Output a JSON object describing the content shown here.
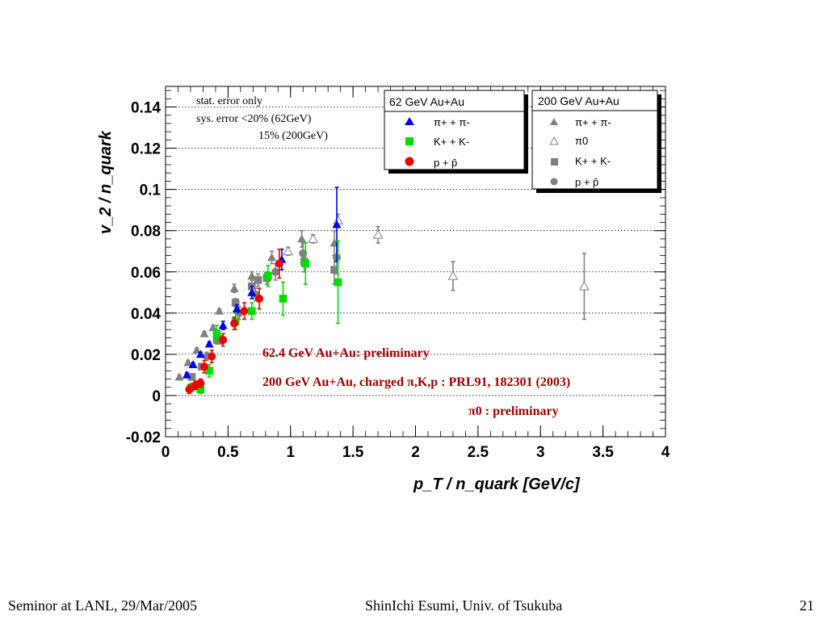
{
  "footer": {
    "left": "Seminor at LANL, 29/Mar/2005",
    "center": "ShinIchi Esumi, Univ. of Tsukuba",
    "right": "21"
  },
  "chart_data": {
    "type": "scatter",
    "title": "",
    "xlabel": "p_T / n_quark [GeV/c]",
    "ylabel": "v_2 / n_quark",
    "xlim": [
      0,
      4
    ],
    "ylim": [
      -0.02,
      0.15
    ],
    "x_ticks": [
      "0",
      "0.5",
      "1",
      "1.5",
      "2",
      "2.5",
      "3",
      "3.5",
      "4"
    ],
    "y_ticks": [
      "-0.02",
      "0",
      "0.02",
      "0.04",
      "0.06",
      "0.08",
      "0.1",
      "0.12",
      "0.14"
    ],
    "grid": "horizontal dotted",
    "notes": [
      "stat. error only",
      "sys. error <20% (62GeV)",
      "15% (200GeV)"
    ],
    "annotations": [
      "62.4 GeV Au+Au: preliminary",
      "200 GeV Au+Au, charged π,K,p : PRL91, 182301 (2003)",
      "π0 : preliminary"
    ],
    "legends": [
      {
        "title": "62 GeV Au+Au",
        "placement": "top-center",
        "entries": [
          "π+ + π-",
          "K+ + K-",
          "p + p̄"
        ]
      },
      {
        "title": "200 GeV Au+Au",
        "placement": "top-right",
        "entries": [
          "π+ + π-",
          "π0",
          "K+ + K-",
          "p + p̄"
        ]
      }
    ],
    "series": [
      {
        "name": "62 GeV π+ + π-",
        "marker": "triangle",
        "fill": true,
        "color": "#0000ee",
        "x": [
          0.17,
          0.22,
          0.28,
          0.35,
          0.46,
          0.57,
          0.69,
          0.93,
          1.37
        ],
        "y": [
          0.01,
          0.015,
          0.02,
          0.025,
          0.034,
          0.042,
          0.05,
          0.066,
          0.083
        ],
        "err": [
          0.001,
          0.001,
          0.001,
          0.001,
          0.002,
          0.002,
          0.003,
          0.005,
          0.018
        ]
      },
      {
        "name": "62 GeV K+ + K-",
        "marker": "square",
        "fill": true,
        "color": "#00dd00",
        "x": [
          0.21,
          0.28,
          0.35,
          0.41,
          0.56,
          0.69,
          0.82,
          0.94,
          1.12,
          1.38
        ],
        "y": [
          0.004,
          0.003,
          0.012,
          0.03,
          0.036,
          0.041,
          0.058,
          0.047,
          0.064,
          0.055
        ],
        "err": [
          0.002,
          0.002,
          0.003,
          0.004,
          0.004,
          0.004,
          0.005,
          0.008,
          0.01,
          0.02
        ]
      },
      {
        "name": "62 GeV p + p̄",
        "marker": "circle",
        "fill": true,
        "color": "#ee0000",
        "x": [
          0.19,
          0.24,
          0.28,
          0.31,
          0.37,
          0.46,
          0.55,
          0.63,
          0.75,
          0.91
        ],
        "y": [
          0.003,
          0.005,
          0.006,
          0.014,
          0.019,
          0.027,
          0.035,
          0.041,
          0.047,
          0.064
        ],
        "err": [
          0.002,
          0.002,
          0.002,
          0.003,
          0.003,
          0.003,
          0.003,
          0.004,
          0.005,
          0.007
        ]
      },
      {
        "name": "200 GeV π+ + π-",
        "marker": "triangle",
        "fill": true,
        "color": "#808080",
        "x": [
          0.11,
          0.18,
          0.25,
          0.31,
          0.38,
          0.43,
          0.55,
          0.69,
          0.85,
          1.09,
          1.35
        ],
        "y": [
          0.009,
          0.016,
          0.022,
          0.03,
          0.033,
          0.041,
          0.052,
          0.058,
          0.067,
          0.076,
          0.074
        ],
        "err": [
          0.001,
          0.001,
          0.001,
          0.001,
          0.001,
          0.001,
          0.002,
          0.002,
          0.003,
          0.004,
          0.006
        ]
      },
      {
        "name": "200 GeV π0",
        "marker": "triangle",
        "fill": false,
        "color": "#808080",
        "x": [
          0.98,
          1.18,
          1.38,
          1.7,
          2.3,
          3.35
        ],
        "y": [
          0.07,
          0.076,
          0.085,
          0.078,
          0.058,
          0.053
        ],
        "err": [
          0.002,
          0.002,
          0.003,
          0.004,
          0.007,
          0.016
        ]
      },
      {
        "name": "200 GeV K+ + K-",
        "marker": "square",
        "fill": true,
        "color": "#808080",
        "x": [
          0.21,
          0.29,
          0.41,
          0.56,
          0.69,
          0.74,
          0.81,
          1.11,
          1.35
        ],
        "y": [
          0.009,
          0.014,
          0.027,
          0.045,
          0.053,
          0.056,
          0.057,
          0.065,
          0.061
        ],
        "err": [
          0.001,
          0.001,
          0.002,
          0.002,
          0.003,
          0.003,
          0.003,
          0.005,
          0.007
        ]
      },
      {
        "name": "200 GeV p + p̄",
        "marker": "circle",
        "fill": true,
        "color": "#808080",
        "x": [
          0.33,
          0.44,
          0.59,
          0.72,
          0.88,
          1.1,
          1.37
        ],
        "y": [
          0.019,
          0.027,
          0.04,
          0.049,
          0.06,
          0.069,
          0.067
        ],
        "err": [
          0.002,
          0.002,
          0.003,
          0.003,
          0.004,
          0.006,
          0.008
        ]
      }
    ]
  }
}
